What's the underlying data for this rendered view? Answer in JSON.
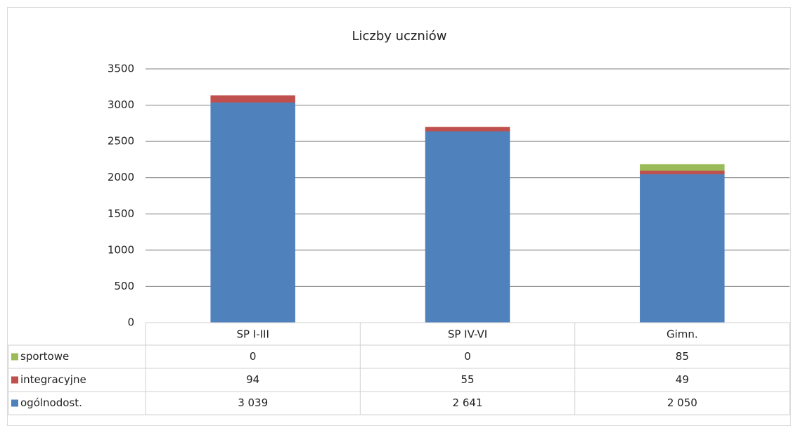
{
  "chart_data": {
    "type": "bar",
    "stacked": true,
    "title": "Liczby uczniów",
    "categories": [
      "SP I-III",
      "SP IV-VI",
      "Gimn."
    ],
    "series": [
      {
        "name": "ogólnodost.",
        "color": "#4f81bd",
        "values": [
          3039,
          2641,
          2050
        ],
        "value_labels": [
          "3 039",
          "2 641",
          "2 050"
        ]
      },
      {
        "name": "integracyjne",
        "color": "#c0504d",
        "values": [
          94,
          55,
          49
        ]
      },
      {
        "name": "sportowe",
        "color": "#9bbb59",
        "values": [
          0,
          0,
          85
        ]
      }
    ],
    "ylim": [
      0,
      3500
    ],
    "yticks": [
      0,
      500,
      1000,
      1500,
      2000,
      2500,
      3000,
      3500
    ],
    "grid": true,
    "data_table": true
  }
}
